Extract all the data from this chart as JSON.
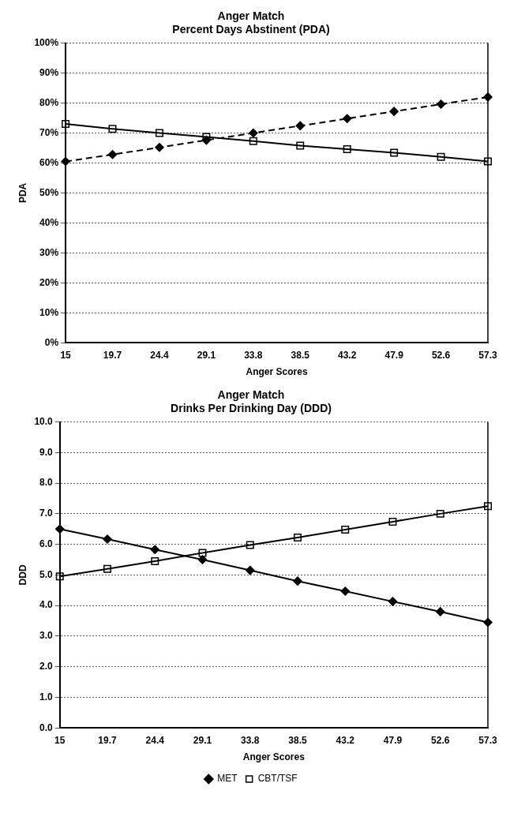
{
  "chart_data": [
    {
      "type": "line",
      "title": "Anger Match",
      "subtitle": "Percent Days Abstinent (PDA)",
      "xlabel": "Anger Scores",
      "ylabel": "PDA",
      "categories": [
        "15",
        "19.7",
        "24.4",
        "29.1",
        "33.8",
        "38.5",
        "43.2",
        "47.9",
        "52.6",
        "57.3"
      ],
      "series": [
        {
          "color": "#000000",
          "marker": "diamond",
          "line_style": "dashed",
          "values": [
            60.5,
            62.8,
            65.2,
            67.6,
            70,
            72.4,
            74.8,
            77.2,
            79.6,
            82
          ]
        },
        {
          "color": "#000000",
          "marker": "square",
          "line_style": "solid",
          "values": [
            73,
            71.4,
            70,
            68.7,
            67.3,
            65.8,
            64.6,
            63.4,
            62,
            60.5
          ]
        }
      ],
      "ylim": [
        0,
        100
      ],
      "yticks": [
        {
          "value": 0,
          "label": "0%"
        },
        {
          "value": 10,
          "label": "10%"
        },
        {
          "value": 20,
          "label": "20%"
        },
        {
          "value": 30,
          "label": "30%"
        },
        {
          "value": 40,
          "label": "40%"
        },
        {
          "value": 50,
          "label": "50%"
        },
        {
          "value": 60,
          "label": "60%"
        },
        {
          "value": 70,
          "label": "70%"
        },
        {
          "value": 80,
          "label": "80%"
        },
        {
          "value": 90,
          "label": "90%"
        },
        {
          "value": 100,
          "label": "100%"
        }
      ],
      "grid": "y",
      "legend": false
    },
    {
      "type": "line",
      "title": "Anger Match",
      "subtitle": "Drinks Per Drinking Day (DDD)",
      "xlabel": "Anger Scores",
      "ylabel": "DDD",
      "categories": [
        "15",
        "19.7",
        "24.4",
        "29.1",
        "33.8",
        "38.5",
        "43.2",
        "47.9",
        "52.6",
        "57.3"
      ],
      "series": [
        {
          "name": "MET",
          "color": "#000000",
          "marker": "diamond",
          "line_style": "solid",
          "values": [
            6.5,
            6.17,
            5.83,
            5.5,
            5.15,
            4.8,
            4.47,
            4.13,
            3.8,
            3.45
          ]
        },
        {
          "name": "CBT/TSF",
          "color": "#000000",
          "marker": "square",
          "line_style": "solid",
          "values": [
            4.95,
            5.2,
            5.45,
            5.72,
            5.98,
            6.22,
            6.48,
            6.74,
            7.0,
            7.25
          ]
        }
      ],
      "ylim": [
        0,
        10
      ],
      "yticks": [
        {
          "value": 0,
          "label": "0.0"
        },
        {
          "value": 1,
          "label": "1.0"
        },
        {
          "value": 2,
          "label": "2.0"
        },
        {
          "value": 3,
          "label": "3.0"
        },
        {
          "value": 4,
          "label": "4.0"
        },
        {
          "value": 5,
          "label": "5.0"
        },
        {
          "value": 6,
          "label": "6.0"
        },
        {
          "value": 7,
          "label": "7.0"
        },
        {
          "value": 8,
          "label": "8.0"
        },
        {
          "value": 9,
          "label": "9.0"
        },
        {
          "value": 10,
          "label": "10.0"
        }
      ],
      "grid": "y",
      "legend": "bottom"
    }
  ]
}
